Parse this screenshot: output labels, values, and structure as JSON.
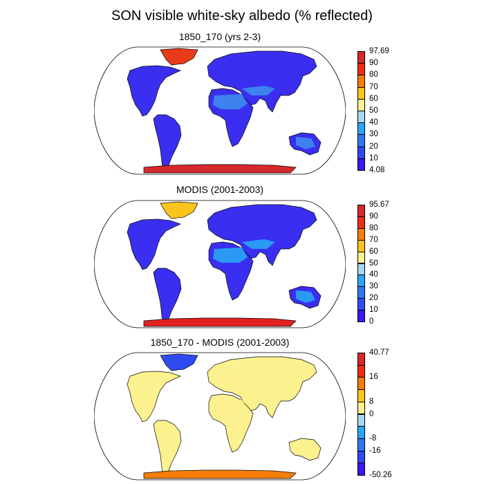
{
  "figure_title": "SON visible white-sky albedo (% reflected)",
  "panels": [
    {
      "title": "1850_170 (yrs 2-3)",
      "colorbar": {
        "colors": [
          "#3a16f2",
          "#2f4bef",
          "#2f78f2",
          "#29a6f5",
          "#a4d8f2",
          "#fbf28f",
          "#fbc41c",
          "#f57e0a",
          "#ee2e14",
          "#d7282b"
        ],
        "labels": [
          "4.08",
          "10",
          "20",
          "30",
          "40",
          "50",
          "60",
          "70",
          "80",
          "90",
          "97.69"
        ]
      },
      "fills": {
        "land": "#3a2ff0",
        "desert": "#3f8cf0",
        "ice": "#d7282b",
        "arctic": "#ea3b1b"
      }
    },
    {
      "title": "MODIS (2001-2003)",
      "colorbar": {
        "colors": [
          "#3a16f2",
          "#2f4bef",
          "#2f78f2",
          "#29a6f5",
          "#a4d8f2",
          "#fbf28f",
          "#fbc41c",
          "#f57e0a",
          "#ee2e14",
          "#d7282b"
        ],
        "labels": [
          "0",
          "10",
          "20",
          "30",
          "40",
          "50",
          "60",
          "70",
          "80",
          "90",
          "95.67"
        ]
      },
      "fills": {
        "land": "#3a2ff0",
        "desert": "#29a6f5",
        "ice": "#e32020",
        "arctic": "#fbc41c"
      }
    },
    {
      "title": "1850_170 - MODIS (2001-2003)",
      "colorbar": {
        "colors": [
          "#3a16f2",
          "#2f4bef",
          "#2f78f2",
          "#29a6f5",
          "#a4d8f2",
          "#fbf28f",
          "#fbc41c",
          "#f57e0a",
          "#ee2e14",
          "#d7282b"
        ],
        "labels": [
          "-50.26",
          "-16",
          "-8",
          "0",
          "8",
          "16",
          "40.77"
        ],
        "label_ticks": [
          0,
          2,
          3,
          5,
          6,
          8,
          10
        ]
      },
      "fills": {
        "land": "#fbf28f",
        "desert": "#fbf28f",
        "ice": "#f57e0a",
        "arctic": "#2f4bef"
      }
    }
  ]
}
